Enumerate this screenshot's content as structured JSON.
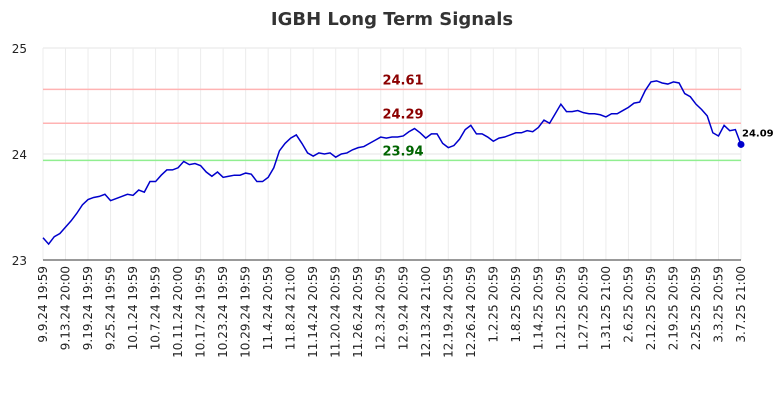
{
  "chart_data": {
    "type": "line",
    "title": "IGBH Long Term Signals",
    "categories": [
      "9.9.24 19:59",
      null,
      null,
      null,
      "9.13.24 20:00",
      null,
      null,
      null,
      "9.19.24 19:59",
      null,
      null,
      null,
      "9.25.24 19:59",
      null,
      null,
      null,
      "10.1.24 19:59",
      null,
      null,
      null,
      "10.7.24 19:59",
      null,
      null,
      null,
      "10.11.24 20:00",
      null,
      null,
      null,
      "10.17.24 19:59",
      null,
      null,
      null,
      "10.23.24 19:59",
      null,
      null,
      null,
      "10.29.24 19:59",
      null,
      null,
      null,
      "11.4.24 20:59",
      null,
      null,
      null,
      "11.8.24 21:00",
      null,
      null,
      null,
      "11.14.24 20:59",
      null,
      null,
      null,
      "11.20.24 20:59",
      null,
      null,
      null,
      "11.26.24 20:59",
      null,
      null,
      null,
      "12.3.24 20:59",
      null,
      null,
      null,
      "12.9.24 20:59",
      null,
      null,
      null,
      "12.13.24 21:00",
      null,
      null,
      null,
      "12.19.24 20:59",
      null,
      null,
      null,
      "12.26.24 20:59",
      null,
      null,
      null,
      "1.2.25 20:59",
      null,
      null,
      null,
      "1.8.25 20:59",
      null,
      null,
      null,
      "1.14.25 20:59",
      null,
      null,
      null,
      "1.21.25 20:59",
      null,
      null,
      null,
      "1.27.25 20:59",
      null,
      null,
      null,
      "1.31.25 21:00",
      null,
      null,
      null,
      "2.6.25 20:59",
      null,
      null,
      null,
      "2.12.25 20:59",
      null,
      null,
      null,
      "2.19.25 20:59",
      null,
      null,
      null,
      "2.25.25 20:59",
      null,
      null,
      null,
      "3.3.25 20:59",
      null,
      null,
      null,
      "3.7.25 21:00"
    ],
    "series": [
      {
        "color": "#0000cc",
        "values": [
          23.21,
          23.15,
          23.22,
          23.25,
          23.31,
          23.37,
          23.44,
          23.52,
          23.57,
          23.59,
          23.6,
          23.62,
          23.56,
          23.58,
          23.6,
          23.62,
          23.61,
          23.66,
          23.64,
          23.74,
          23.74,
          23.8,
          23.85,
          23.85,
          23.87,
          23.93,
          23.9,
          23.91,
          23.89,
          23.83,
          23.79,
          23.83,
          23.78,
          23.79,
          23.8,
          23.8,
          23.82,
          23.81,
          23.74,
          23.74,
          23.78,
          23.87,
          24.03,
          24.1,
          24.15,
          24.18,
          24.1,
          24.01,
          23.98,
          24.01,
          24.0,
          24.01,
          23.97,
          24.0,
          24.01,
          24.04,
          24.06,
          24.07,
          24.1,
          24.13,
          24.16,
          24.15,
          24.16,
          24.16,
          24.17,
          24.21,
          24.24,
          24.2,
          24.15,
          24.19,
          24.19,
          24.1,
          24.06,
          24.08,
          24.14,
          24.23,
          24.27,
          24.19,
          24.19,
          24.16,
          24.12,
          24.15,
          24.16,
          24.18,
          24.2,
          24.2,
          24.22,
          24.21,
          24.25,
          24.32,
          24.29,
          24.38,
          24.47,
          24.4,
          24.4,
          24.41,
          24.39,
          24.38,
          24.38,
          24.37,
          24.35,
          24.38,
          24.38,
          24.41,
          24.44,
          24.48,
          24.49,
          24.6,
          24.68,
          24.69,
          24.67,
          24.66,
          24.68,
          24.67,
          24.57,
          24.54,
          24.47,
          24.42,
          24.36,
          24.2,
          24.17,
          24.27,
          24.22,
          24.23,
          24.09
        ]
      }
    ],
    "ylim": [
      23,
      25
    ],
    "yticks": [
      23,
      24,
      25
    ],
    "grid": true,
    "hlines": [
      {
        "value": 24.61,
        "color": "#ffb3b3",
        "label_color": "#8b0000"
      },
      {
        "value": 24.29,
        "color": "#ffb3b3",
        "label_color": "#8b0000"
      },
      {
        "value": 23.94,
        "color": "#90ee90",
        "label_color": "#006400"
      }
    ]
  }
}
